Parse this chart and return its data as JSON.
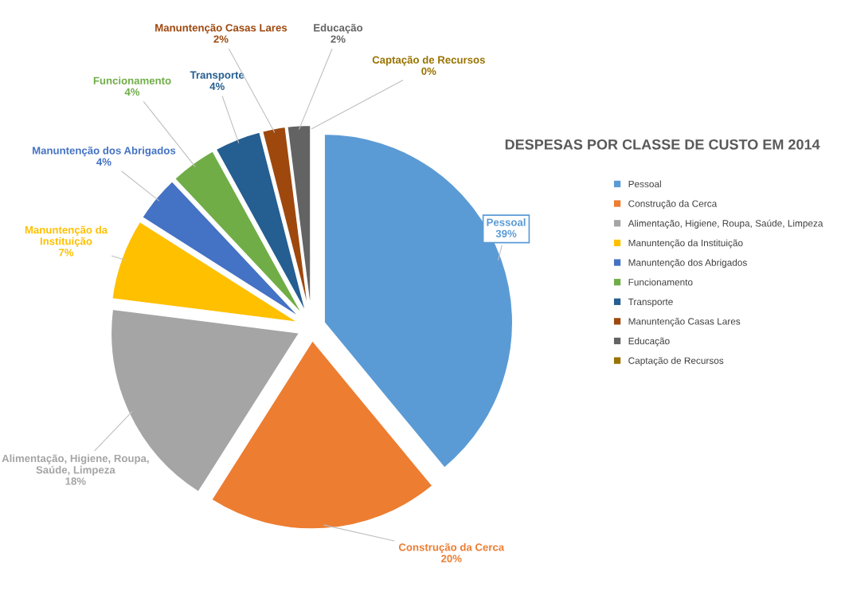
{
  "chart_data": {
    "type": "pie",
    "title": "DESPESAS POR CLASSE DE CUSTO EM 2014",
    "categories": [
      "Pessoal",
      "Construção da Cerca",
      "Alimentação, Higiene, Roupa, Saúde, Limpeza",
      "Manuntenção da Instituição",
      "Manuntenção dos Abrigados",
      "Funcionamento",
      "Transporte",
      "Manuntenção Casas Lares",
      "Educação",
      "Captação de Recursos"
    ],
    "values": [
      39,
      20,
      18,
      7,
      4,
      4,
      4,
      2,
      2,
      0
    ],
    "colors": [
      "#5b9bd5",
      "#ed7d31",
      "#a5a5a5",
      "#ffc000",
      "#4472c4",
      "#70ad47",
      "#255e91",
      "#9e480e",
      "#636363",
      "#997300"
    ],
    "value_labels": [
      "39%",
      "20%",
      "18%",
      "7%",
      "4%",
      "4%",
      "4%",
      "2%",
      "2%",
      "0%"
    ],
    "data_labels": true,
    "legend": "right"
  }
}
